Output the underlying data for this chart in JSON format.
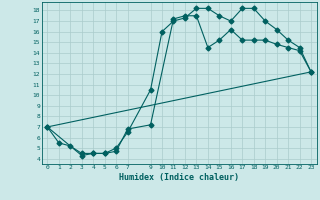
{
  "bg_color": "#cce8e8",
  "grid_color": "#aacccc",
  "line_color": "#006060",
  "xlabel": "Humidex (Indice chaleur)",
  "xlim": [
    -0.5,
    23.5
  ],
  "ylim": [
    3.5,
    18.8
  ],
  "yticks": [
    4,
    5,
    6,
    7,
    8,
    9,
    10,
    11,
    12,
    13,
    14,
    15,
    16,
    17,
    18
  ],
  "xticks": [
    0,
    1,
    2,
    3,
    4,
    5,
    6,
    7,
    9,
    10,
    11,
    12,
    13,
    14,
    15,
    16,
    17,
    18,
    19,
    20,
    21,
    22,
    23
  ],
  "line1_x": [
    0,
    1,
    2,
    3,
    4,
    5,
    6,
    7,
    9,
    10,
    11,
    12,
    13,
    14,
    15,
    16,
    17,
    18,
    19,
    20,
    21,
    22,
    23
  ],
  "line1_y": [
    7.0,
    5.5,
    5.2,
    4.5,
    4.5,
    4.5,
    5.0,
    6.5,
    10.5,
    16.0,
    17.0,
    17.3,
    18.2,
    18.2,
    17.5,
    17.0,
    18.2,
    18.2,
    17.0,
    16.2,
    15.2,
    14.5,
    12.2
  ],
  "line2_x": [
    0,
    3,
    4,
    5,
    6,
    7,
    9,
    11,
    12,
    13,
    14,
    15,
    16,
    17,
    18,
    19,
    20,
    21,
    22,
    23
  ],
  "line2_y": [
    7.0,
    4.3,
    4.5,
    4.5,
    4.7,
    6.8,
    7.2,
    17.2,
    17.5,
    17.5,
    14.5,
    15.2,
    16.2,
    15.2,
    15.2,
    15.2,
    14.8,
    14.5,
    14.2,
    12.2
  ],
  "line3_x": [
    0,
    23
  ],
  "line3_y": [
    7.0,
    12.2
  ],
  "markersize": 2.5
}
